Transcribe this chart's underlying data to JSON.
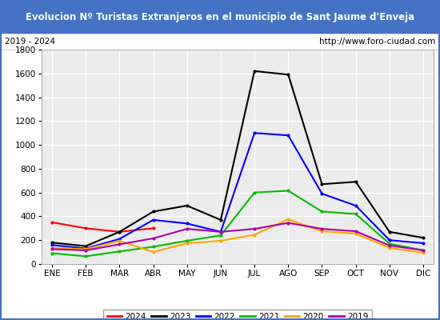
{
  "title": "Evolucion Nº Turistas Extranjeros en el municipio de Sant Jaume d'Enveja",
  "subtitle_left": "2019 - 2024",
  "subtitle_right": "http://www.foro-ciudad.com",
  "months": [
    "ENE",
    "FEB",
    "MAR",
    "ABR",
    "MAY",
    "JUN",
    "JUL",
    "AGO",
    "SEP",
    "OCT",
    "NOV",
    "DIC"
  ],
  "ylim": [
    0,
    1800
  ],
  "yticks": [
    0,
    200,
    400,
    600,
    800,
    1000,
    1200,
    1400,
    1600,
    1800
  ],
  "series": {
    "2024": {
      "color": "#ff0000",
      "values": [
        350,
        300,
        270,
        300,
        null,
        null,
        null,
        null,
        null,
        null,
        null,
        null
      ]
    },
    "2023": {
      "color": "#000000",
      "values": [
        180,
        150,
        270,
        440,
        490,
        370,
        1620,
        1590,
        670,
        690,
        270,
        220
      ]
    },
    "2022": {
      "color": "#0000ff",
      "values": [
        160,
        130,
        210,
        370,
        340,
        270,
        1100,
        1080,
        590,
        490,
        200,
        175
      ]
    },
    "2021": {
      "color": "#00bb00",
      "values": [
        90,
        65,
        105,
        145,
        195,
        240,
        600,
        615,
        440,
        420,
        170,
        115
      ]
    },
    "2020": {
      "color": "#ffa500",
      "values": [
        135,
        125,
        195,
        100,
        175,
        195,
        245,
        375,
        275,
        255,
        135,
        95
      ]
    },
    "2019": {
      "color": "#aa00aa",
      "values": [
        125,
        115,
        165,
        215,
        295,
        270,
        295,
        345,
        295,
        275,
        155,
        115
      ]
    }
  },
  "title_bg_color": "#4472c4",
  "title_fg_color": "#ffffff",
  "plot_bg_color": "#ebebeb",
  "border_color": "#4472c4",
  "grid_color": "#ffffff",
  "fig_bg_color": "#ffffff"
}
